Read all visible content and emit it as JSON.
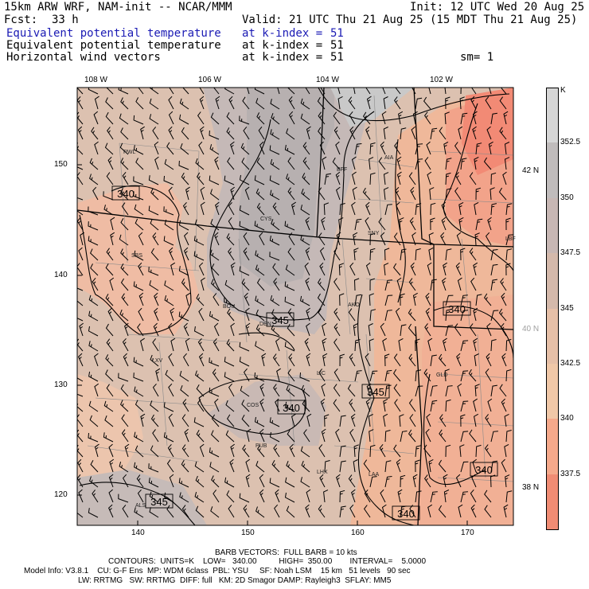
{
  "header": {
    "title_left": "15km ARW WRF, NAM-init -- NCAR/MMM",
    "init": "Init: 12 UTC Wed 20 Aug 25",
    "fcst_label": "Fcst:",
    "fcst_value": "33 h",
    "valid": "Valid: 21 UTC Thu 21 Aug 25 (15 MDT Thu 21 Aug 25)",
    "fields": [
      {
        "name": "Equivalent potential temperature",
        "level": "at k-index =",
        "k": "51",
        "color": "#1a1ab4"
      },
      {
        "name": "Equivalent potential temperature",
        "level": "at k-index =",
        "k": "51",
        "color": "#000000"
      },
      {
        "name": "Horizontal wind vectors",
        "level": "at k-index =",
        "k": "51",
        "color": "#000000"
      }
    ],
    "smoothing": "sm= 1"
  },
  "map": {
    "top_lon_labels": [
      "108 W",
      "106 W",
      "104 W",
      "102 W"
    ],
    "left_y_ticks": [
      "150",
      "140",
      "130",
      "120"
    ],
    "bottom_x_ticks": [
      "140",
      "150",
      "160",
      "170"
    ],
    "right_lat_labels": [
      "42 N",
      "40 N",
      "38 N"
    ],
    "stations": [
      "RWL",
      "BFF",
      "AIA",
      "CYS",
      "SNY",
      "SBS",
      "LBF",
      "BOU",
      "AKO",
      "DEN",
      "LXV",
      "LIC",
      "GLD",
      "COS",
      "PUB",
      "LHX",
      "LAA",
      "ALS"
    ],
    "contour_labels": [
      "340",
      "345",
      "340",
      "345",
      "340",
      "345",
      "340",
      "340"
    ]
  },
  "colorbar": {
    "unit": "K",
    "labels": [
      "352.5",
      "350",
      "347.5",
      "345",
      "342.5",
      "340",
      "337.5"
    ],
    "colors": [
      "#d6d6d6",
      "#c0bcbc",
      "#c7b7b4",
      "#d4b9ab",
      "#e6c0a8",
      "#f0c8a8",
      "#f5a98b",
      "#f08c74"
    ]
  },
  "footer": {
    "barb_line": "BARB VECTORS:  FULL BARB = 10 kts",
    "contours_line": "CONTOURS:  UNITS=K    LOW=   340.00          HIGH=  350.00        INTERVAL=    5.0000",
    "model_line1": "Model Info: V3.8.1    CU: G-F Ens  MP: WDM 6class  PBL: YSU     SF: Noah LSM    15 km   51 levels   90 sec",
    "model_line2": "LW: RRTMG   SW: RRTMG  DIFF: full   KM: 2D Smagor DAMP: Rayleigh3  SFLAY: MM5"
  }
}
